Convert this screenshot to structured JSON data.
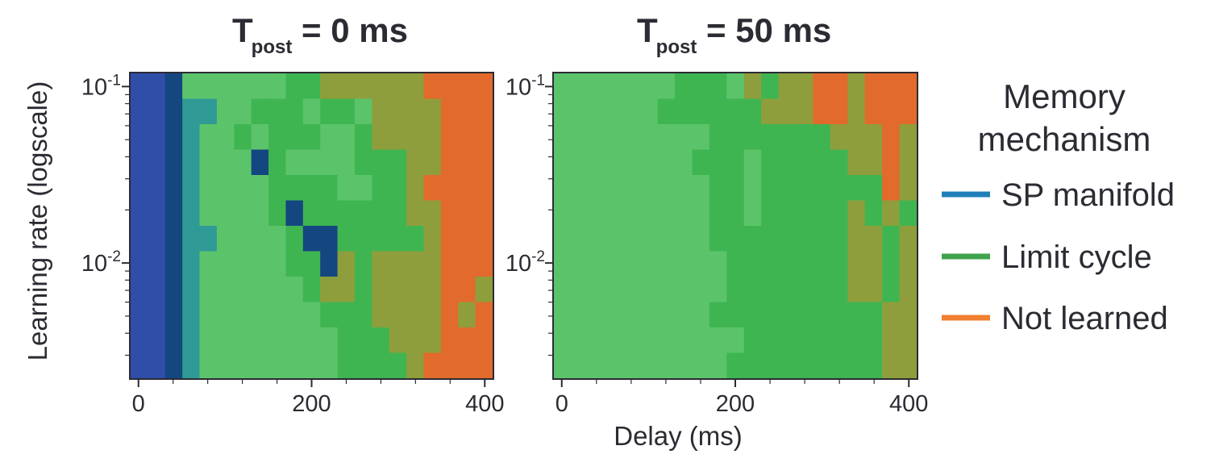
{
  "chart_data": [
    {
      "type": "heatmap",
      "title": "T",
      "title_subscript": "post",
      "title_suffix": " = 0 ms",
      "xlabel": "",
      "ylabel": "Learning rate (logscale)",
      "yscale": "log",
      "xlim": [
        -10,
        410
      ],
      "ylim": [
        0.0022,
        0.12
      ],
      "x_ticks": [
        0,
        200,
        400
      ],
      "y_ticks": [
        {
          "base": "10",
          "exp": "-1",
          "value": 0.1
        },
        {
          "base": "10",
          "exp": "-2",
          "value": 0.01
        }
      ],
      "n_rows": 12,
      "n_cols": 21,
      "rows_top_to_bottom": [
        "BBDLLLLLLGGNNNNNNOOOO",
        "BBDTTLLGGGLGGLNNNNOOO",
        "BBDTLLGLGGGLLGNNNNOOO",
        "BBDTLLLDGLLLLGGGNNOOO",
        "BBDTLLLLGGGGLLGGNOOOO",
        "BBDTLLLLGDGGGGGGNNOOO",
        "BBDTTLLLLGDDGGGGGNOOO",
        "BBDTLLLLLGGDNGNNNNOOO",
        "BBDTLLLLLLGNNGNNNNOON",
        "BBDTLLLLLLLGGGNNNNONO",
        "BBDTLLLLLLLLGGGNNNOOO",
        "BBDTLLLLLLLLGGGGNOOOO"
      ]
    },
    {
      "type": "heatmap",
      "title": "T",
      "title_subscript": "post",
      "title_suffix": " = 50 ms",
      "xlabel": "Delay (ms)",
      "ylabel": "",
      "yscale": "log",
      "xlim": [
        -10,
        410
      ],
      "ylim": [
        0.0022,
        0.12
      ],
      "x_ticks": [
        0,
        200,
        400
      ],
      "y_ticks": [
        {
          "base": "10",
          "exp": "-1",
          "value": 0.1
        },
        {
          "base": "10",
          "exp": "-2",
          "value": 0.01
        }
      ],
      "n_rows": 12,
      "n_cols": 21,
      "rows_top_to_bottom": [
        "LLLLLLLGGGLNGNNOONOOO",
        "LLLLLLGGGGGGNNNOONOOO",
        "LLLLLLLLLGGGGGGGNNNON",
        "LLLLLLLLGGGLGGGGGNNON",
        "LLLLLLLLLGGLGGGGGGGON",
        "LLLLLLLLLGGLGGGGGNGNG",
        "LLLLLLLLLGGGGGGGGNNGN",
        "LLLLLLLLLLGGGGGGGNNGN",
        "LLLLLLLLLLGGGGGGGNNGN",
        "LLLLLLLLLGGGGGGGGGGNN",
        "LLLLLLLLLLLGGGGGGGGNN",
        "LLLLLLLLLLGGGGGGGGGNN"
      ]
    }
  ],
  "cell_color_key": {
    "B": "#2f4ea8",
    "D": "#14467f",
    "T": "#2f9a96",
    "L": "#5bc46b",
    "G": "#3fb551",
    "N": "#8f9e3c",
    "O": "#e26a2c"
  },
  "legend": {
    "title_line1": "Memory",
    "title_line2": "mechanism",
    "items": [
      {
        "label": "SP manifold",
        "color": "#1f7fb8"
      },
      {
        "label": "Limit cycle",
        "color": "#3fa34d"
      },
      {
        "label": "Not learned",
        "color": "#f07f2f"
      }
    ]
  }
}
